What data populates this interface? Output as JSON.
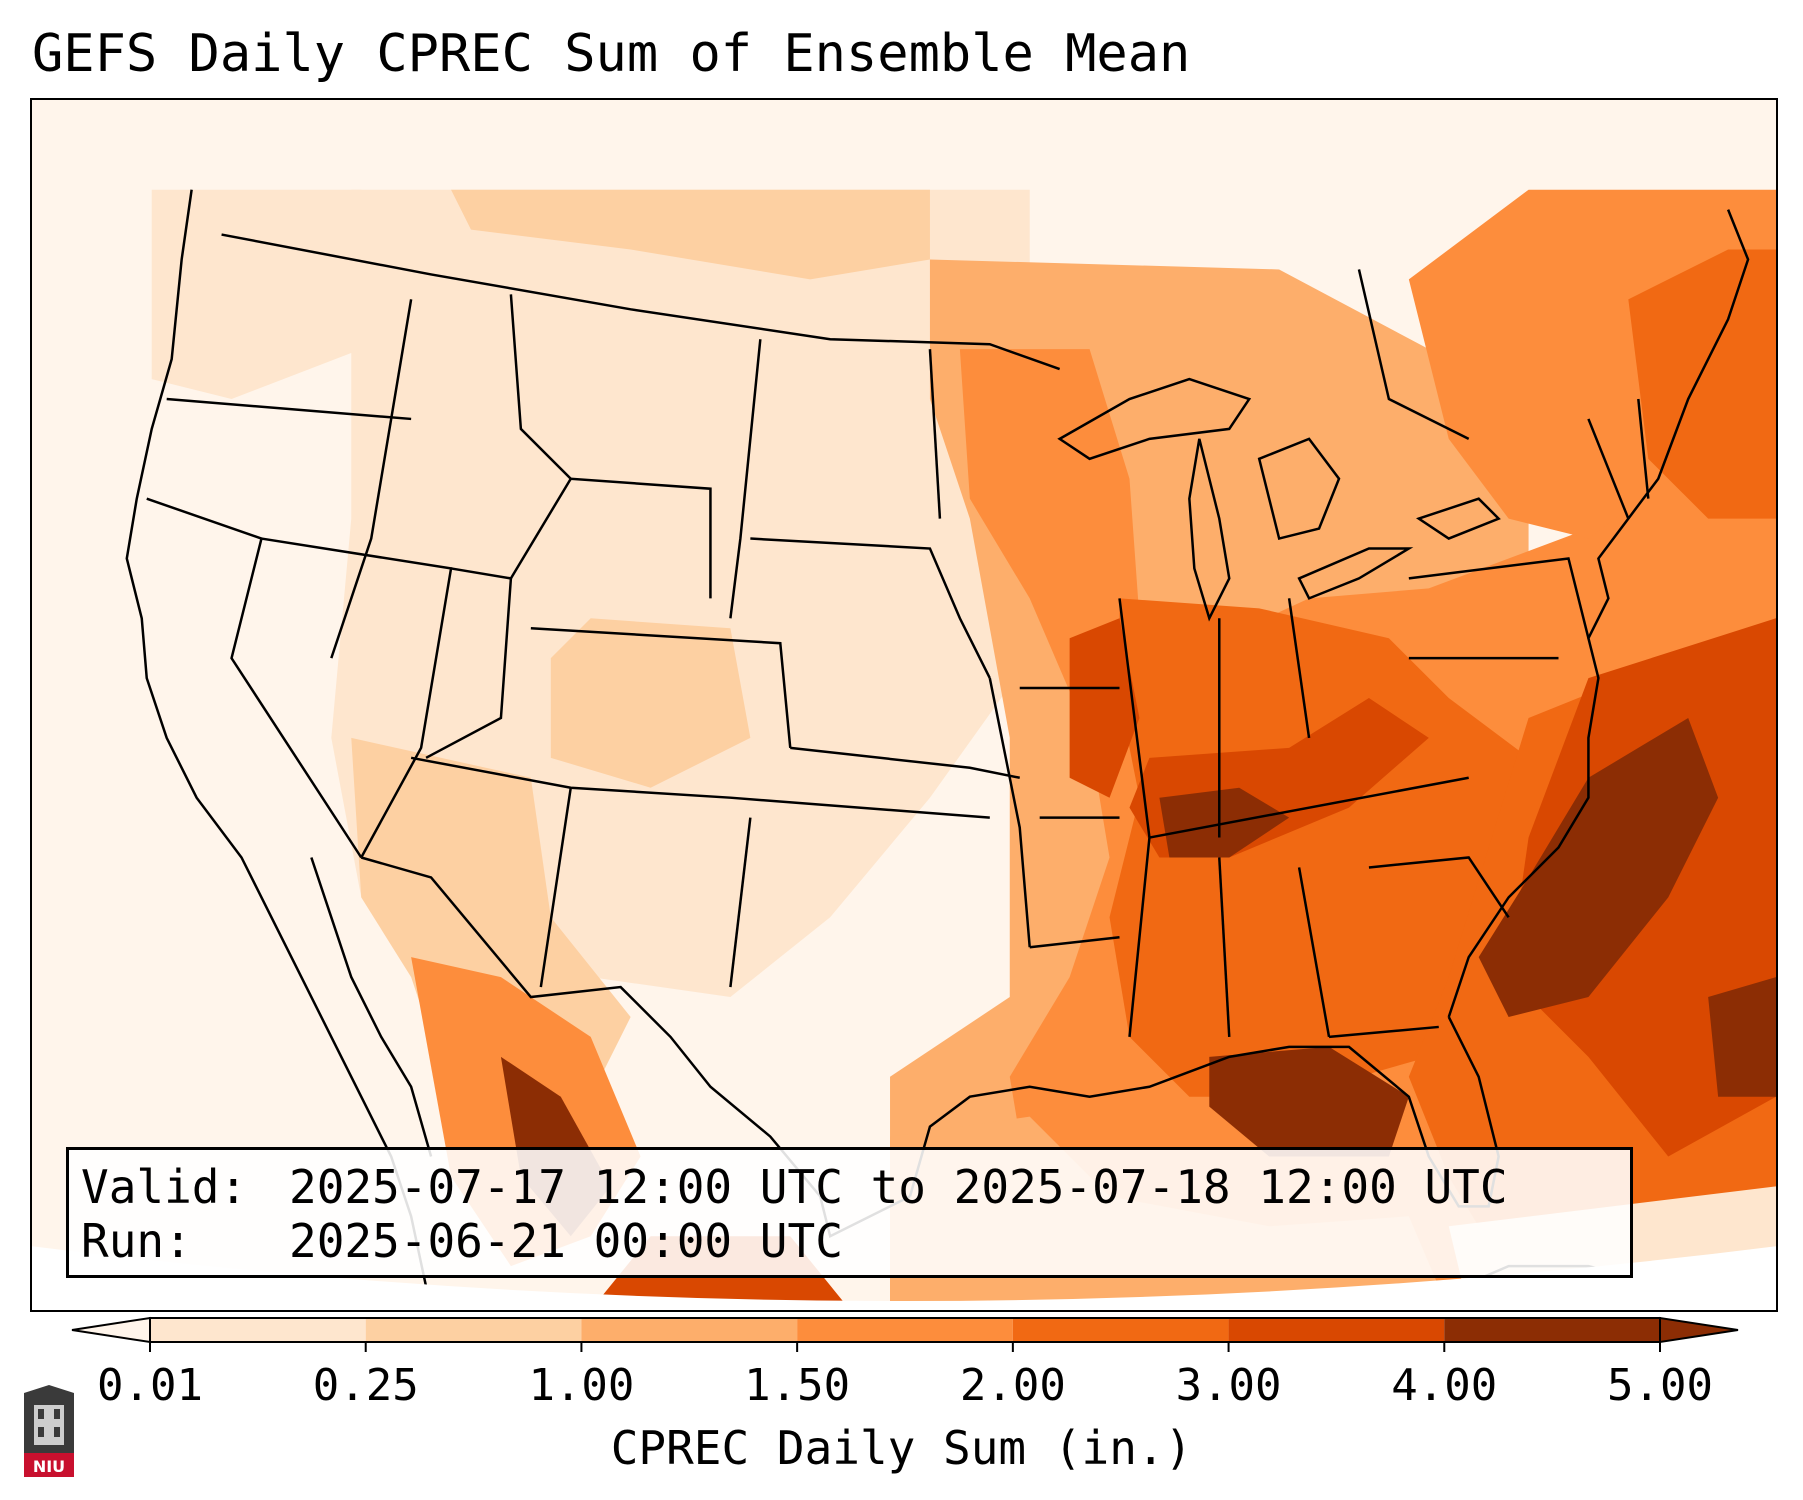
{
  "title": "GEFS Daily CPREC Sum of Ensemble Mean",
  "info": {
    "valid_key": "Valid:",
    "valid_value": "2025-07-17 12:00 UTC to 2025-07-18 12:00 UTC",
    "run_key": "Run:",
    "run_value": "2025-06-21 00:00 UTC"
  },
  "colorbar": {
    "label": "CPREC Daily Sum (in.)",
    "ticks": [
      "0.01",
      "0.25",
      "1.00",
      "1.50",
      "2.00",
      "3.00",
      "4.00",
      "5.00"
    ],
    "colors": [
      "#fff5eb",
      "#fee6ce",
      "#fdd0a2",
      "#fdae6b",
      "#fd8d3c",
      "#f16913",
      "#d94801",
      "#8c2d04"
    ],
    "extend": "both"
  },
  "logo": {
    "text": "NIU"
  }
}
